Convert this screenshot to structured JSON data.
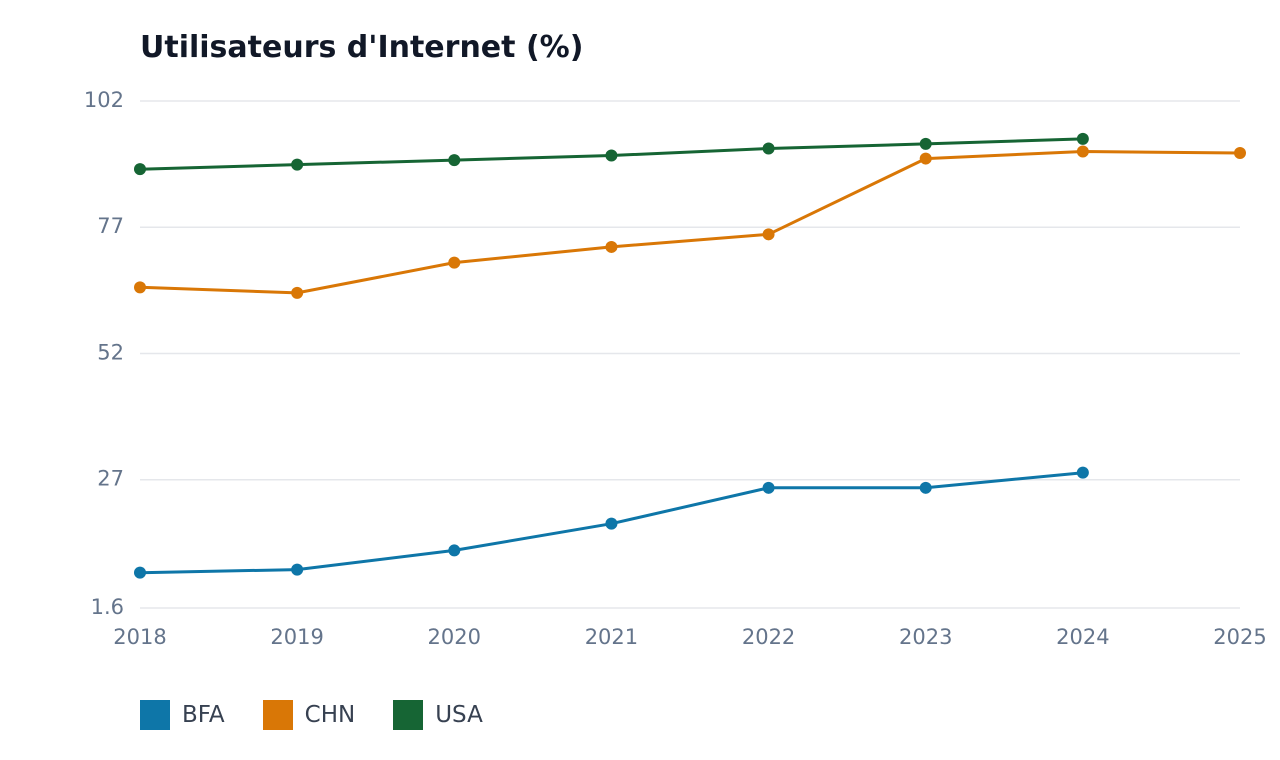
{
  "chart_data": {
    "type": "line",
    "title": "Utilisateurs d'Internet (%)",
    "xlabel": "",
    "ylabel": "",
    "x": [
      2018,
      2019,
      2020,
      2021,
      2022,
      2023,
      2024,
      2025
    ],
    "x_ticks": [
      "2018",
      "2019",
      "2020",
      "2021",
      "2022",
      "2023",
      "2024",
      "2025"
    ],
    "y_ticks": [
      "1.6",
      "27",
      "52",
      "77",
      "102"
    ],
    "ylim": [
      1.6,
      102
    ],
    "grid": true,
    "legend_position": "bottom-left",
    "series": [
      {
        "name": "BFA",
        "color": "#0e76a8",
        "values": [
          8.6,
          9.2,
          13.0,
          18.3,
          25.4,
          25.4,
          28.4,
          null
        ]
      },
      {
        "name": "CHN",
        "color": "#d97706",
        "values": [
          65.1,
          64.0,
          70.0,
          73.1,
          75.6,
          90.6,
          92.0,
          91.7
        ]
      },
      {
        "name": "USA",
        "color": "#166534",
        "values": [
          88.5,
          89.4,
          90.3,
          91.2,
          92.6,
          93.5,
          94.5,
          null
        ]
      }
    ]
  }
}
